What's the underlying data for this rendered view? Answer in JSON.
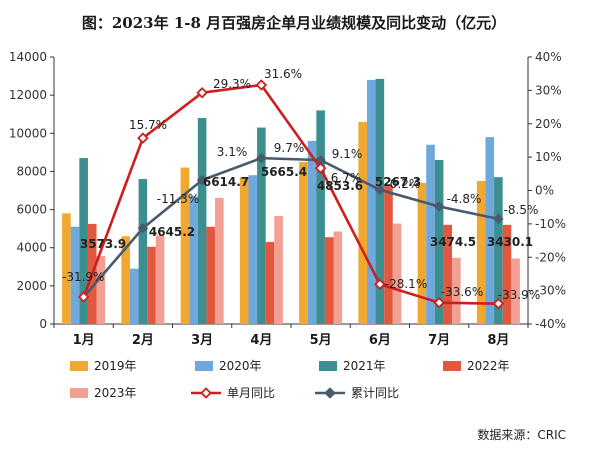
{
  "title": "图：2023年 1-8 月百强房企单月业绩规模及同比变动（亿元）",
  "source": "数据来源：CRIC",
  "colors": {
    "2019年": "#F0A830",
    "2020年": "#6FA8DC",
    "2021年": "#3D8F8F",
    "2022年": "#E2583E",
    "2023年": "#F2A093",
    "单月同比": "#CC1F1F",
    "累计同比": "#4A5A6E"
  },
  "chart_data": {
    "type": "bar",
    "categories": [
      "1月",
      "2月",
      "3月",
      "4月",
      "5月",
      "6月",
      "7月",
      "8月"
    ],
    "series": [
      {
        "name": "2019年",
        "type": "bar",
        "axis": "left",
        "values": [
          5800,
          4600,
          8200,
          7700,
          8500,
          10600,
          7400,
          7500
        ]
      },
      {
        "name": "2020年",
        "type": "bar",
        "axis": "left",
        "values": [
          5100,
          2900,
          6700,
          7800,
          9600,
          12800,
          9400,
          9800
        ]
      },
      {
        "name": "2021年",
        "type": "bar",
        "axis": "left",
        "values": [
          8700,
          7600,
          10800,
          10300,
          11200,
          12850,
          8600,
          7700
        ]
      },
      {
        "name": "2022年",
        "type": "bar",
        "axis": "left",
        "values": [
          5250,
          4050,
          5100,
          4300,
          4550,
          7250,
          5200,
          5200
        ]
      },
      {
        "name": "2023年",
        "type": "bar",
        "axis": "left",
        "values": [
          3573.9,
          4645.2,
          6614.7,
          5665.4,
          4853.6,
          5267.3,
          3474.5,
          3430.1
        ]
      },
      {
        "name": "单月同比",
        "type": "line",
        "axis": "right",
        "values": [
          -31.9,
          15.7,
          29.3,
          31.6,
          6.7,
          -28.1,
          -33.6,
          -33.9
        ]
      },
      {
        "name": "累计同比",
        "type": "line",
        "axis": "right",
        "values": [
          -31.9,
          -11.3,
          3.1,
          9.7,
          9.1,
          0.2,
          -4.8,
          -8.5
        ]
      }
    ],
    "bar_labels": [
      "3573.9",
      "4645.2",
      "6614.7",
      "5665.4",
      "4853.6",
      "5267.3",
      "3474.5",
      "3430.1"
    ],
    "single_month_labels": [
      "-31.9%",
      "15.7%",
      "29.3%",
      "31.6%",
      "6.7%",
      "-28.1%",
      "-33.6%",
      "-33.9%"
    ],
    "cumulative_labels": [
      "",
      "-11.3%",
      "3.1%",
      "9.7%",
      "9.1%",
      "0.2%",
      "-4.8%",
      "-8.5%"
    ],
    "y_left": {
      "min": 0,
      "max": 14000,
      "ticks": [
        "0",
        "2000",
        "4000",
        "6000",
        "8000",
        "10000",
        "12000",
        "14000"
      ]
    },
    "y_right": {
      "min": -40,
      "max": 40,
      "ticks": [
        "-40%",
        "-30%",
        "-20%",
        "-10%",
        "0%",
        "10%",
        "20%",
        "30%",
        "40%"
      ]
    },
    "grid": false,
    "legend_position": "bottom"
  }
}
